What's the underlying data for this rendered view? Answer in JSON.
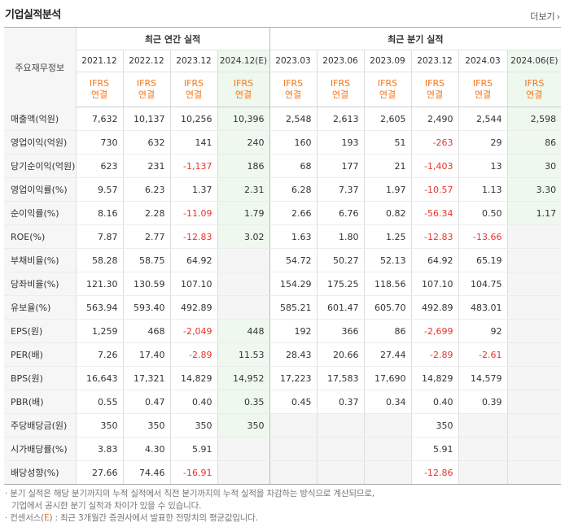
{
  "header": {
    "title": "기업실적분석",
    "more_label": "더보기",
    "more_icon": "›"
  },
  "table": {
    "label_header": "주요재무정보",
    "annual_group": "최근 연간 실적",
    "quarter_group": "최근 분기 실적",
    "periods": [
      {
        "label": "2021.12",
        "est": false
      },
      {
        "label": "2022.12",
        "est": false
      },
      {
        "label": "2023.12",
        "est": false
      },
      {
        "label": "2024.12(E)",
        "est": true
      },
      {
        "label": "2023.03",
        "est": false
      },
      {
        "label": "2023.06",
        "est": false
      },
      {
        "label": "2023.09",
        "est": false
      },
      {
        "label": "2023.12",
        "est": false
      },
      {
        "label": "2024.03",
        "est": false
      },
      {
        "label": "2024.06(E)",
        "est": true
      }
    ],
    "ifrs_top": "IFRS",
    "ifrs_bottom": "연결",
    "rows": [
      {
        "label": "매출액(억원)",
        "values": [
          "7,632",
          "10,137",
          "10,256",
          "10,396",
          "2,548",
          "2,613",
          "2,605",
          "2,490",
          "2,544",
          "2,598"
        ]
      },
      {
        "label": "영업이익(억원)",
        "values": [
          "730",
          "632",
          "141",
          "240",
          "160",
          "193",
          "51",
          "-263",
          "29",
          "86"
        ]
      },
      {
        "label": "당기순이익(억원)",
        "values": [
          "623",
          "231",
          "-1,137",
          "186",
          "68",
          "177",
          "21",
          "-1,403",
          "13",
          "30"
        ]
      },
      {
        "label": "영업이익률(%)",
        "values": [
          "9.57",
          "6.23",
          "1.37",
          "2.31",
          "6.28",
          "7.37",
          "1.97",
          "-10.57",
          "1.13",
          "3.30"
        ]
      },
      {
        "label": "순이익률(%)",
        "values": [
          "8.16",
          "2.28",
          "-11.09",
          "1.79",
          "2.66",
          "6.76",
          "0.82",
          "-56.34",
          "0.50",
          "1.17"
        ]
      },
      {
        "label": "ROE(%)",
        "values": [
          "7.87",
          "2.77",
          "-12.83",
          "3.02",
          "1.63",
          "1.80",
          "1.25",
          "-12.83",
          "-13.66",
          ""
        ]
      },
      {
        "label": "부채비율(%)",
        "values": [
          "58.28",
          "58.75",
          "64.92",
          "",
          "54.72",
          "50.27",
          "52.13",
          "64.92",
          "65.19",
          ""
        ]
      },
      {
        "label": "당좌비율(%)",
        "values": [
          "121.30",
          "130.59",
          "107.10",
          "",
          "154.29",
          "175.25",
          "118.56",
          "107.10",
          "104.75",
          ""
        ]
      },
      {
        "label": "유보율(%)",
        "values": [
          "563.94",
          "593.40",
          "492.89",
          "",
          "585.21",
          "601.47",
          "605.70",
          "492.89",
          "483.01",
          ""
        ]
      },
      {
        "label": "EPS(원)",
        "values": [
          "1,259",
          "468",
          "-2,049",
          "448",
          "192",
          "366",
          "86",
          "-2,699",
          "92",
          ""
        ]
      },
      {
        "label": "PER(배)",
        "values": [
          "7.26",
          "17.40",
          "-2.89",
          "11.53",
          "28.43",
          "20.66",
          "27.44",
          "-2.89",
          "-2.61",
          ""
        ]
      },
      {
        "label": "BPS(원)",
        "values": [
          "16,643",
          "17,321",
          "14,829",
          "14,952",
          "17,223",
          "17,583",
          "17,690",
          "14,829",
          "14,579",
          ""
        ]
      },
      {
        "label": "PBR(배)",
        "values": [
          "0.55",
          "0.47",
          "0.40",
          "0.35",
          "0.45",
          "0.37",
          "0.34",
          "0.40",
          "0.39",
          ""
        ]
      },
      {
        "label": "주당배당금(원)",
        "values": [
          "350",
          "350",
          "350",
          "350",
          "",
          "",
          "",
          "350",
          "",
          ""
        ]
      },
      {
        "label": "시가배당률(%)",
        "values": [
          "3.83",
          "4.30",
          "5.91",
          "",
          "",
          "",
          "",
          "5.91",
          "",
          ""
        ]
      },
      {
        "label": "배당성향(%)",
        "values": [
          "27.66",
          "74.46",
          "-16.91",
          "",
          "",
          "",
          "",
          "-12.86",
          "",
          ""
        ]
      }
    ]
  },
  "notes": {
    "line1": "· 분기 실적은 해당 분기까지의 누적 실적에서 직전 분기까지의 누적 실적을 차감하는 방식으로 계산되므로,",
    "line2": "기업에서 공시한 분기 실적과 차이가 있을 수 있습니다.",
    "line3_prefix": "· 컨센서스(",
    "line3_e": "E",
    "line3_suffix": ") : 최근 3개월간 증권사에서 발표한 전망치의 평균값입니다."
  },
  "colors": {
    "negative": "#e6352b",
    "ifrs": "#f5761a",
    "estimate_bg": "#eef8ee",
    "empty_bg": "#f5f5f5"
  }
}
